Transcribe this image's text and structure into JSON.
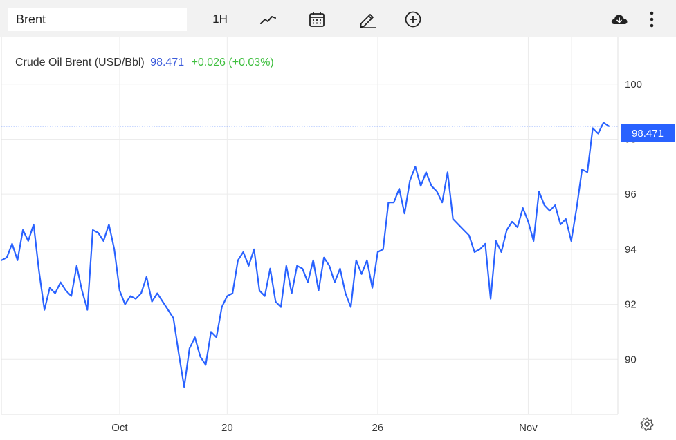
{
  "toolbar": {
    "symbol_value": "Brent",
    "interval_label": "1H"
  },
  "legend": {
    "name": "Crude Oil Brent (USD/Bbl)",
    "price": "98.471",
    "change": "+0.026 (+0.03%)"
  },
  "current_price_label": "98.471",
  "colors": {
    "line": "#2962ff",
    "price_text": "#3b5bdb",
    "change_text": "#3fbf3f",
    "badge": "#2962ff",
    "grid": "#ececec",
    "toolbar_bg": "#f2f2f2"
  },
  "icons": [
    "line-chart-icon",
    "calendar-icon",
    "pencil-icon",
    "add-circle-icon",
    "cloud-download-icon",
    "more-vertical-icon",
    "settings-gear-icon"
  ],
  "chart_data": {
    "type": "line",
    "title": "",
    "xlabel": "",
    "ylabel": "",
    "ylim": [
      88.0,
      101.7
    ],
    "y_ticks": [
      90,
      92,
      94,
      96,
      98,
      100
    ],
    "x_ticks": [
      "Oct",
      "20",
      "26",
      "Nov"
    ],
    "x_tick_index": [
      22,
      42,
      70,
      98
    ],
    "grid": true,
    "current_price": 98.471,
    "series": [
      {
        "values": [
          93.6,
          93.7,
          94.2,
          93.6,
          94.7,
          94.3,
          94.9,
          93.2,
          91.8,
          92.6,
          92.4,
          92.8,
          92.5,
          92.3,
          93.4,
          92.5,
          91.8,
          94.7,
          94.6,
          94.3,
          94.9,
          94.0,
          92.5,
          92.0,
          92.3,
          92.2,
          92.4,
          93.0,
          92.1,
          92.4,
          92.1,
          91.8,
          91.5,
          90.2,
          89.0,
          90.4,
          90.8,
          90.1,
          89.8,
          91.0,
          90.8,
          91.9,
          92.3,
          92.4,
          93.6,
          93.9,
          93.4,
          94.0,
          92.5,
          92.3,
          93.3,
          92.1,
          91.9,
          93.4,
          92.4,
          93.4,
          93.3,
          92.8,
          93.6,
          92.5,
          93.7,
          93.4,
          92.8,
          93.3,
          92.4,
          91.9,
          93.6,
          93.1,
          93.6,
          92.6,
          93.9,
          94.0,
          95.7,
          95.7,
          96.2,
          95.3,
          96.5,
          97.0,
          96.3,
          96.8,
          96.3,
          96.1,
          95.7,
          96.8,
          95.1,
          94.9,
          94.7,
          94.5,
          93.9,
          94.0,
          94.2,
          92.2,
          94.3,
          93.9,
          94.7,
          95.0,
          94.8,
          95.5,
          95.0,
          94.3,
          96.1,
          95.6,
          95.4,
          95.6,
          94.9,
          95.1,
          94.3,
          95.5,
          96.9,
          96.8,
          98.4,
          98.2,
          98.6,
          98.471
        ]
      }
    ]
  }
}
